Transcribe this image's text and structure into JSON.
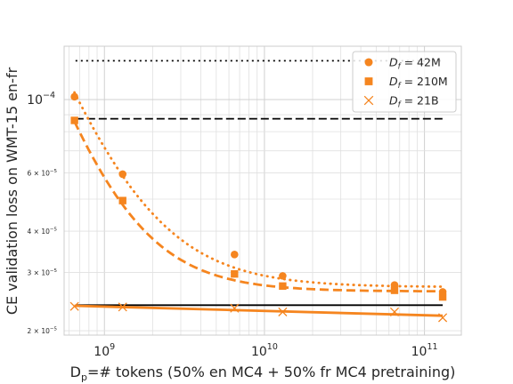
{
  "chart_data": {
    "type": "scatter",
    "xlabel_main": "D",
    "xlabel_sub": "p",
    "xlabel_rest": "=# tokens (50% en MC4 + 50% fr MC4 pretraining)",
    "ylabel": "CE validation loss on WMT-15 en-fr",
    "x_scale": "log",
    "y_scale": "log",
    "xlim": [
      560000000,
      170000000000
    ],
    "ylim": [
      1.94e-05,
      0.000145
    ],
    "grid": true,
    "legend_position": "top-right",
    "color": "#f5851f",
    "x_ticks": [
      {
        "value": 1000000000,
        "base": "10",
        "exp": "9"
      },
      {
        "value": 10000000000,
        "base": "10",
        "exp": "10"
      },
      {
        "value": 100000000000,
        "base": "10",
        "exp": "11"
      }
    ],
    "y_ticks": [
      {
        "value": 0.0001,
        "base": "10",
        "exp": "−4",
        "major": true
      },
      {
        "value": 6e-05,
        "base": "6 × 10",
        "exp": "−5",
        "major": false
      },
      {
        "value": 4e-05,
        "base": "4 × 10",
        "exp": "−5",
        "major": false
      },
      {
        "value": 3e-05,
        "base": "3 × 10",
        "exp": "−5",
        "major": false
      },
      {
        "value": 2e-05,
        "base": "2 × 10",
        "exp": "−5",
        "major": false
      }
    ],
    "series": [
      {
        "name_main": "D",
        "name_sub": "f",
        "name_rest": " = 42M",
        "marker": "circle",
        "line_style": "dotted",
        "x": [
          650000000,
          1300000000,
          6500000000,
          13000000000,
          65000000000,
          130000000000
        ],
        "y": [
          0.000102,
          5.95e-05,
          3.4e-05,
          2.93e-05,
          2.75e-05,
          2.62e-05
        ],
        "fit": {
          "a": 2.71e-05,
          "b": 7.8e-05,
          "c": 650000000,
          "k": 1.3
        }
      },
      {
        "name_main": "D",
        "name_sub": "f",
        "name_rest": " = 210M",
        "marker": "square",
        "line_style": "dashed",
        "x": [
          650000000,
          1300000000,
          6500000000,
          13000000000,
          65000000000,
          130000000000
        ],
        "y": [
          8.65e-05,
          4.95e-05,
          2.97e-05,
          2.73e-05,
          2.65e-05,
          2.53e-05
        ],
        "fit": {
          "a": 2.63e-05,
          "b": 5.95e-05,
          "c": 650000000,
          "k": 1.45
        }
      },
      {
        "name_main": "D",
        "name_sub": "f",
        "name_rest": " = 21B",
        "marker": "x",
        "line_style": "solid",
        "x": [
          650000000,
          1300000000,
          6500000000,
          13000000000,
          65000000000,
          130000000000
        ],
        "y": [
          2.37e-05,
          2.36e-05,
          2.34e-05,
          2.28e-05,
          2.28e-05,
          2.19e-05
        ],
        "fit_line": {
          "x": [
            650000000,
            130000000000
          ],
          "y": [
            2.38e-05,
            2.22e-05
          ]
        }
      }
    ],
    "reference_lines": [
      {
        "style": "dotted",
        "y": 0.000131,
        "x": [
          660000000,
          130000000000
        ]
      },
      {
        "style": "dashed",
        "y": 8.75e-05,
        "x": [
          660000000,
          130000000000
        ]
      },
      {
        "style": "solid",
        "y": 2.39e-05,
        "x": [
          660000000,
          130000000000
        ]
      }
    ]
  }
}
